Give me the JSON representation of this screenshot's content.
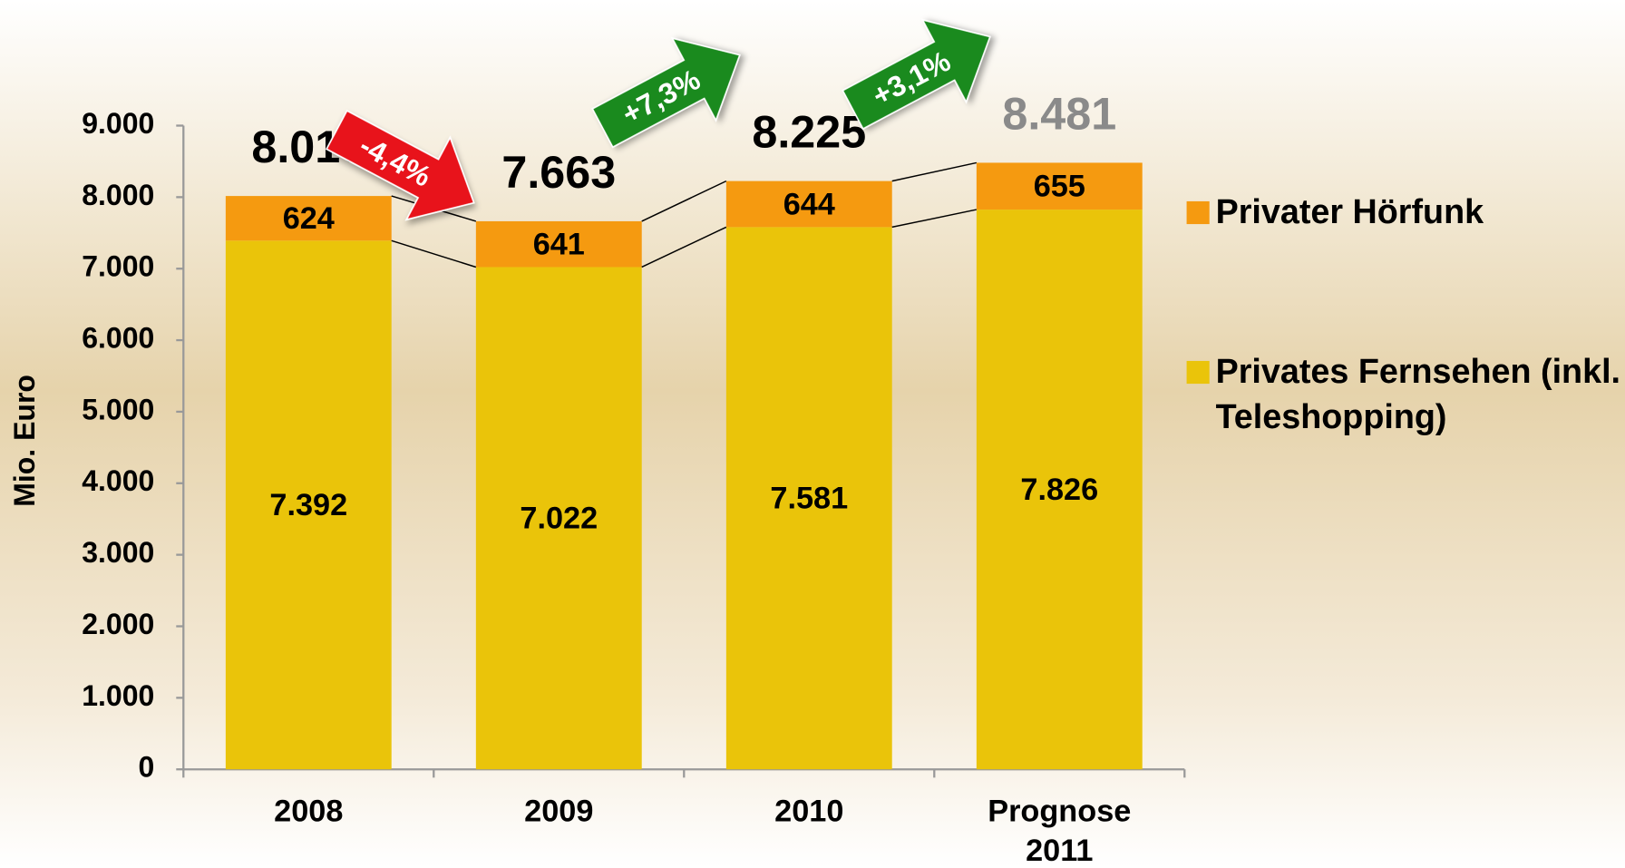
{
  "chart_data": {
    "type": "stacked_bar",
    "y_axis_label": "Mio. Euro",
    "categories": [
      "2008",
      "2009",
      "2010",
      "Prognose 2011"
    ],
    "series": [
      {
        "name": "Privates Fernsehen (inkl. Teleshopping)",
        "color": "#eac40a",
        "values": [
          7392,
          7022,
          7581,
          7826
        ],
        "value_labels": [
          "7.392",
          "7.022",
          "7.581",
          "7.826"
        ]
      },
      {
        "name": "Privater Hörfunk",
        "color": "#f59a10",
        "values": [
          624,
          641,
          644,
          655
        ]
      }
    ],
    "totals": {
      "values": [
        8016,
        7663,
        8225,
        8481
      ],
      "value_labels": [
        "8.016",
        "7.663",
        "8.225",
        "8.481"
      ],
      "colors": [
        "#000000",
        "#000000",
        "#000000",
        "#8a8a8a"
      ]
    },
    "annotations": [
      {
        "text": "-4,4%",
        "color": "#e8131b"
      },
      {
        "text": "+7,3%",
        "color": "#1a8a1e"
      },
      {
        "text": "+3,1%",
        "color": "#1a8a1e"
      }
    ],
    "ylim": [
      0,
      9000
    ],
    "yticks": [
      0,
      {
        "value": 1000,
        "label": "1.000"
      },
      {
        "value": 2000,
        "label": "2.000"
      },
      {
        "value": 3000,
        "label": "3.000"
      },
      {
        "value": 4000,
        "label": "4.000"
      },
      {
        "value": 5000,
        "label": "5.000"
      },
      {
        "value": 6000,
        "label": "6.000"
      },
      {
        "value": 7000,
        "label": "7.000"
      },
      {
        "value": 8000,
        "label": "8.000"
      },
      {
        "value": 9000,
        "label": "9.000"
      }
    ],
    "legend": "right"
  }
}
